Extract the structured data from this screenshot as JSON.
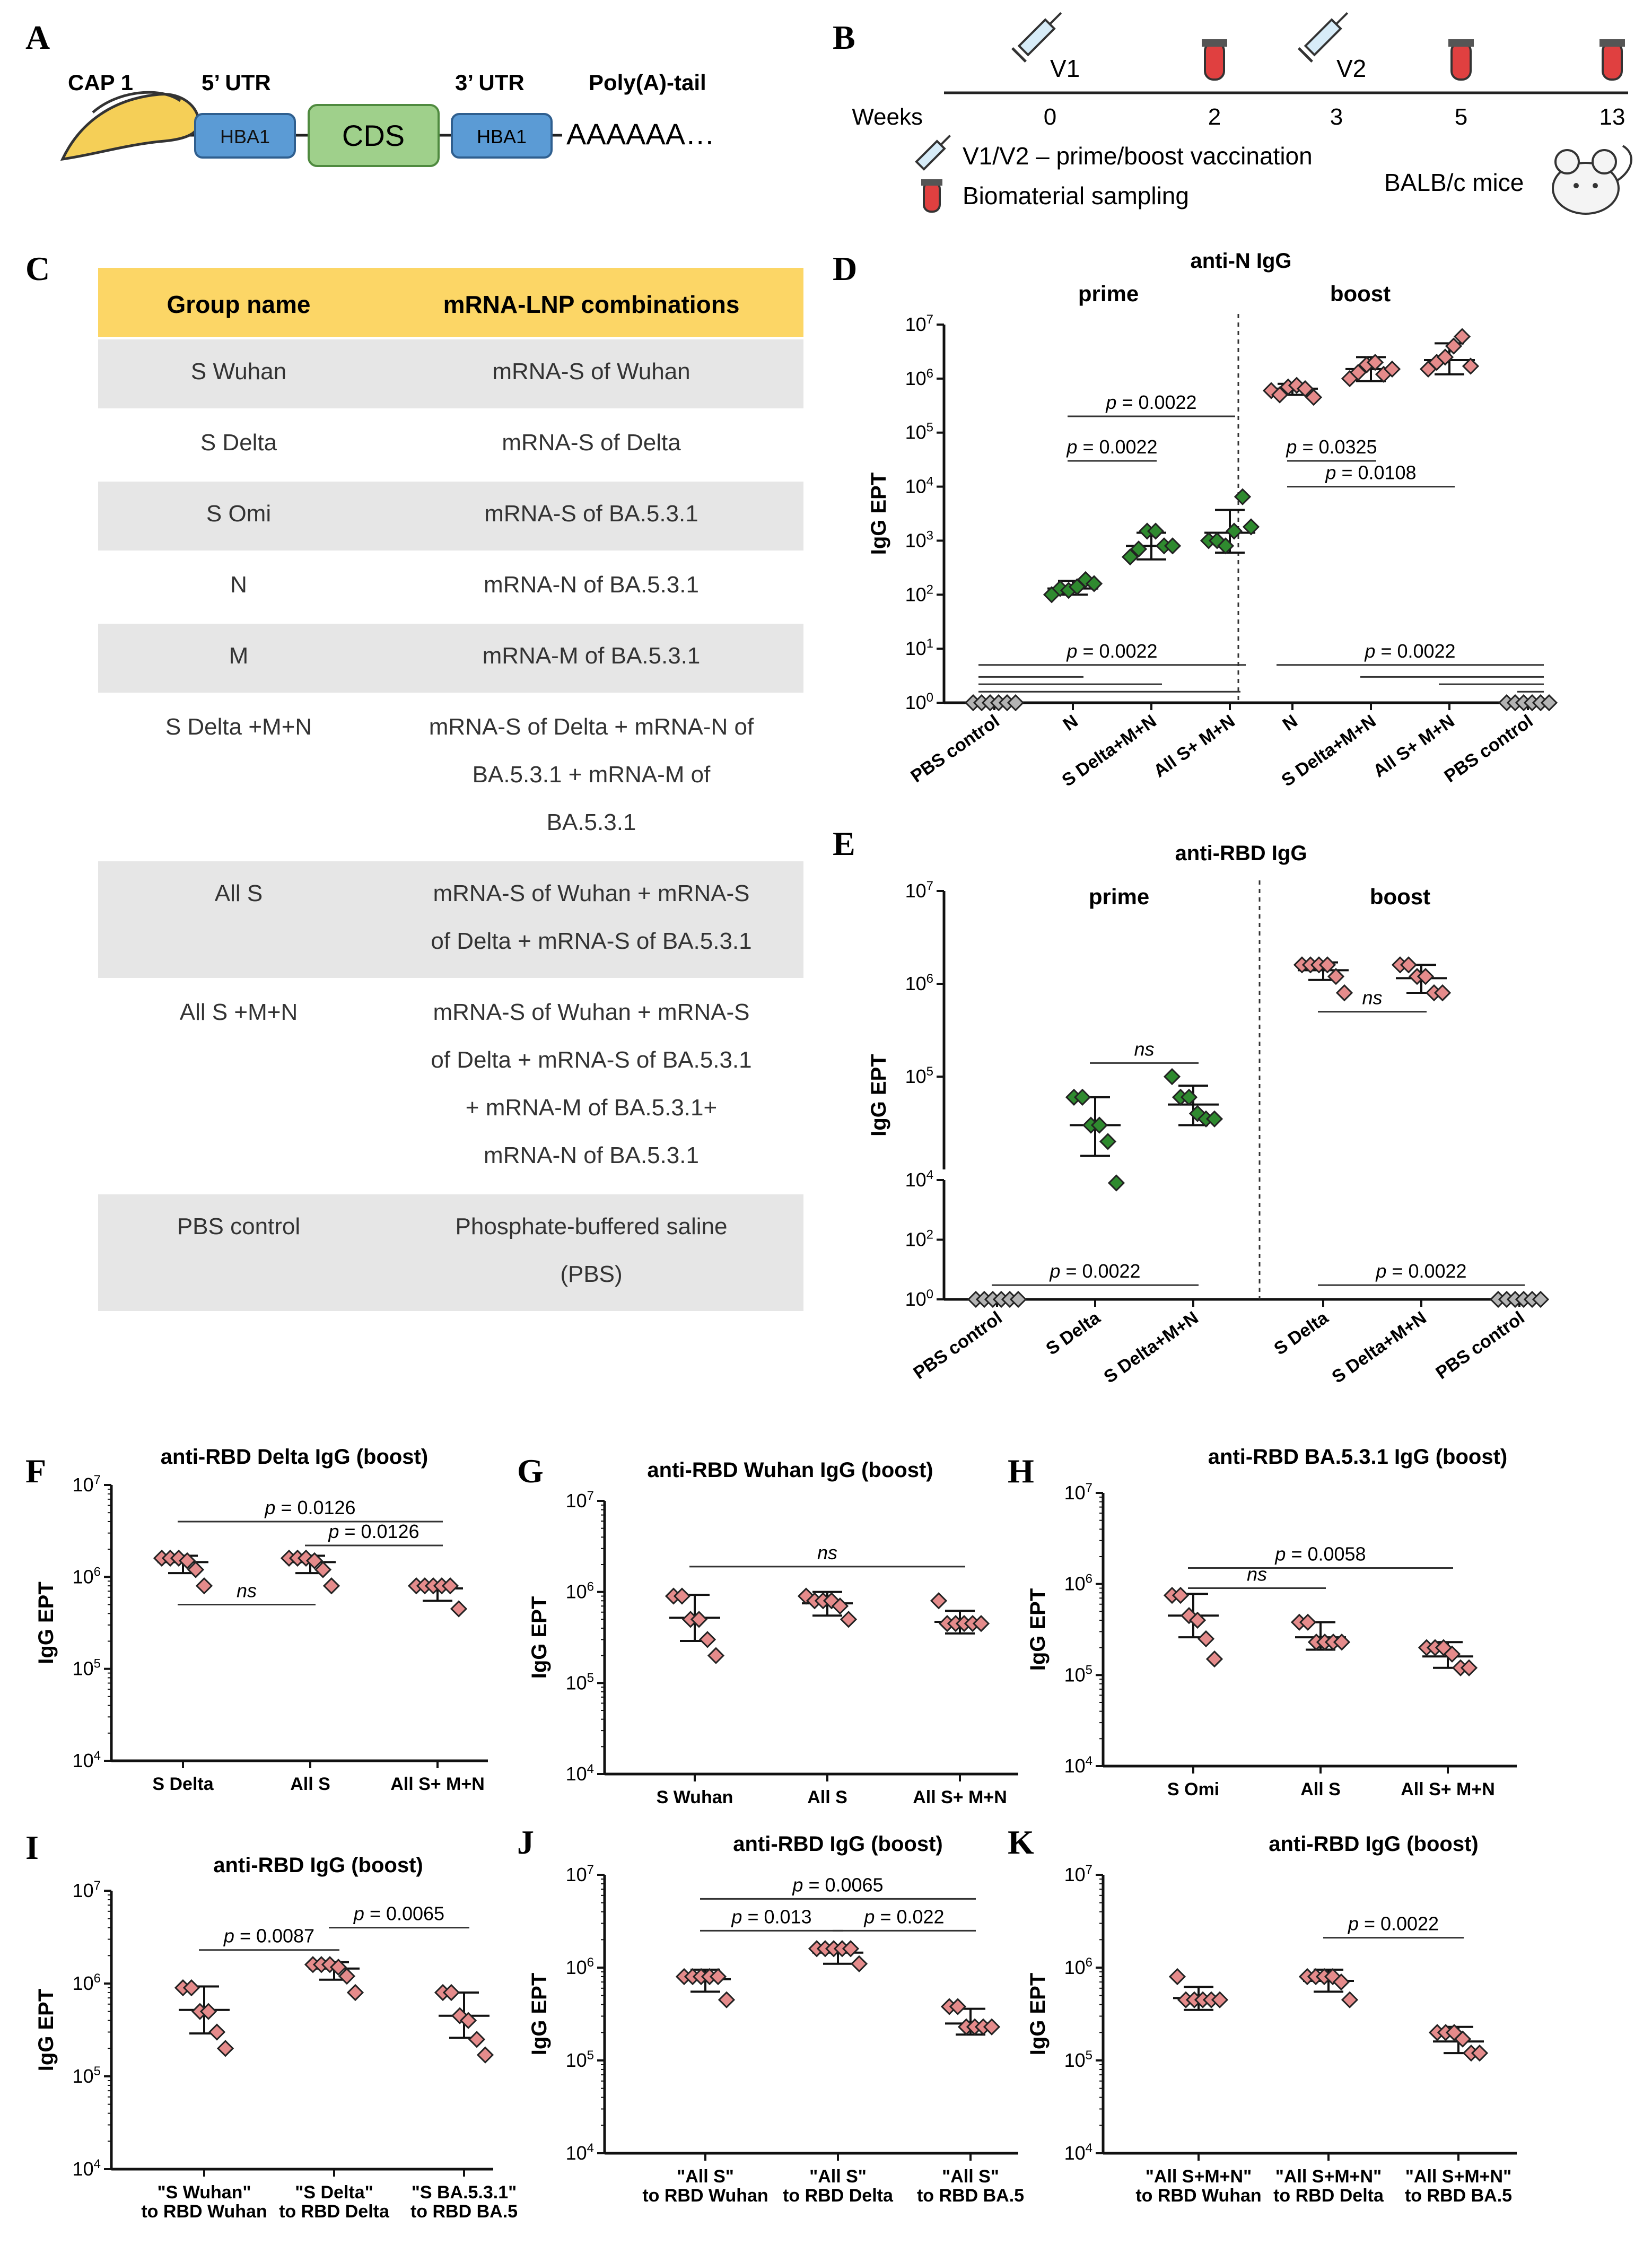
{
  "panel_letters": [
    "A",
    "B",
    "C",
    "D",
    "E",
    "F",
    "G",
    "H",
    "I",
    "J",
    "K"
  ],
  "panel_a": {
    "cap": "CAP 1",
    "utr5": "5’ UTR",
    "utr3": "3’ UTR",
    "poly_a": "Poly(A)-tail",
    "hba1": "HBA1",
    "cds": "CDS",
    "tail_seq": "AAAAAA…"
  },
  "panel_b": {
    "weeks_label": "Weeks",
    "week_ticks": [
      "0",
      "2",
      "3",
      "5",
      "13"
    ],
    "v1": "V1",
    "v2": "V2",
    "legend_vacc": "V1/V2 – prime/boost vaccination",
    "legend_sampling": "Biomaterial sampling",
    "mice": "BALB/c mice"
  },
  "panel_c": {
    "header": [
      "Group name",
      "mRNA-LNP combinations"
    ],
    "rows": [
      {
        "name": "S Wuhan",
        "lines": [
          "mRNA-S of Wuhan"
        ]
      },
      {
        "name": "S Delta",
        "lines": [
          "mRNA-S of Delta"
        ]
      },
      {
        "name": "S Omi",
        "lines": [
          "mRNA-S of BA.5.3.1"
        ]
      },
      {
        "name": "N",
        "lines": [
          "mRNA-N of BA.5.3.1"
        ]
      },
      {
        "name": "M",
        "lines": [
          "mRNA-M of BA.5.3.1"
        ]
      },
      {
        "name": "S Delta +M+N",
        "lines": [
          "mRNA-S of Delta + mRNA-N of",
          "BA.5.3.1 + mRNA-M of",
          "BA.5.3.1"
        ]
      },
      {
        "name": "All S",
        "lines": [
          "mRNA-S of Wuhan + mRNA-S",
          "of Delta + mRNA-S of BA.5.3.1"
        ]
      },
      {
        "name": "All S +M+N",
        "lines": [
          "mRNA-S of Wuhan + mRNA-S",
          "of Delta + mRNA-S of BA.5.3.1",
          "+ mRNA-M of BA.5.3.1+",
          "mRNA-N of BA.5.3.1"
        ]
      },
      {
        "name": "PBS control",
        "lines": [
          "Phosphate-buffered saline",
          "(PBS)"
        ]
      }
    ],
    "colors": {
      "header": "#fcd666",
      "shade": "#e6e6e6"
    }
  },
  "colors": {
    "green": "#2f8a2f",
    "pink": "#e58b8b",
    "grey": "#b3b3b3",
    "yellow": "#f5cf57",
    "blue": "#5b9bd5",
    "cds": "#9fd08b"
  },
  "chart_data": [
    {
      "id": "D",
      "type": "scatter",
      "title": "anti-N IgG",
      "ylabel": "IgG EPT",
      "yscale": "log",
      "ylim": [
        1,
        10000000
      ],
      "yticks": [
        "10^0",
        "10^1",
        "10^2",
        "10^3",
        "10^4",
        "10^5",
        "10^6",
        "10^7"
      ],
      "sections": [
        "prime",
        "boost"
      ],
      "categories": [
        "PBS control",
        "N",
        "S Delta+M+N",
        "All S+ M+N",
        "N",
        "S Delta+M+N",
        "All S+ M+N",
        "PBS control"
      ],
      "series": [
        {
          "name": "PBS control (prime)",
          "color": "grey",
          "values": [
            1,
            1,
            1,
            1,
            1,
            1
          ],
          "mean": 1,
          "sd": [
            1,
            1
          ]
        },
        {
          "name": "N (prime)",
          "color": "green",
          "values": [
            100,
            130,
            120,
            140,
            190,
            160
          ],
          "mean": 130,
          "sd": [
            100,
            180
          ]
        },
        {
          "name": "S Delta+M+N (prime)",
          "color": "green",
          "values": [
            500,
            700,
            1500,
            1500,
            800,
            800
          ],
          "mean": 800,
          "sd": [
            450,
            1400
          ]
        },
        {
          "name": "All S+ M+N (prime)",
          "color": "green",
          "values": [
            1000,
            1000,
            800,
            1500,
            6500,
            1800
          ],
          "mean": 1400,
          "sd": [
            600,
            3700
          ]
        },
        {
          "name": "N (boost)",
          "color": "pink",
          "values": [
            600000,
            500000,
            700000,
            750000,
            650000,
            450000
          ],
          "mean": 650000,
          "sd": [
            500000,
            800000
          ]
        },
        {
          "name": "S Delta+M+N (boost)",
          "color": "pink",
          "values": [
            1000000,
            1300000,
            1800000,
            2000000,
            1200000,
            1500000
          ],
          "mean": 1500000,
          "sd": [
            900000,
            2500000
          ]
        },
        {
          "name": "All S+ M+N (boost)",
          "color": "pink",
          "values": [
            1500000,
            2000000,
            2500000,
            4000000,
            6000000,
            1700000
          ],
          "mean": 2200000,
          "sd": [
            1200000,
            4500000
          ]
        },
        {
          "name": "PBS control (boost)",
          "color": "grey",
          "values": [
            1,
            1,
            1,
            1,
            1,
            1
          ],
          "mean": 1,
          "sd": [
            1,
            1
          ]
        }
      ],
      "annotations": [
        {
          "text": "p = 0.0022",
          "from": 1,
          "to": 3,
          "y": 200000
        },
        {
          "text": "p = 0.0022",
          "from": 1,
          "to": 2,
          "y": 30000
        },
        {
          "text": "p = 0.0325",
          "from": 4,
          "to": 5,
          "y": 30000
        },
        {
          "text": "p = 0.0108",
          "from": 4,
          "to": 6,
          "y": 10000
        },
        {
          "text": "p = 0.0022",
          "from": 0,
          "to": 3,
          "y": 5,
          "lines": [
            3,
            2.2,
            1.6
          ]
        },
        {
          "text": "p = 0.0022",
          "from": 4,
          "to": 7,
          "y": 5,
          "lines": [
            3,
            2.2,
            1.6
          ]
        }
      ]
    },
    {
      "id": "E",
      "type": "scatter",
      "title": "anti-RBD IgG",
      "ylabel": "IgG EPT",
      "yscale": "log",
      "ylim": [
        1,
        10000000
      ],
      "yticks": [
        "10^0",
        "10^2",
        "10^4",
        "10^5",
        "10^6",
        "10^7"
      ],
      "sections": [
        "prime",
        "boost"
      ],
      "categories": [
        "PBS control",
        "S Delta",
        "S Delta+M+N",
        "S Delta",
        "S Delta+M+N",
        "PBS control"
      ],
      "series": [
        {
          "name": "PBS control (prime)",
          "color": "grey",
          "values": [
            1,
            1,
            1,
            1,
            1,
            1
          ],
          "mean": 1,
          "sd": [
            1,
            1
          ]
        },
        {
          "name": "S Delta (prime)",
          "color": "green",
          "values": [
            60000,
            60000,
            30000,
            30000,
            20000,
            8000
          ],
          "mean": 30000,
          "sd": [
            14000,
            60000
          ]
        },
        {
          "name": "S Delta+M+N (prime)",
          "color": "green",
          "values": [
            100000,
            60000,
            60000,
            40000,
            35000,
            35000
          ],
          "mean": 50000,
          "sd": [
            30000,
            80000
          ]
        },
        {
          "name": "S Delta (boost)",
          "color": "pink",
          "values": [
            1600000,
            1600000,
            1600000,
            1600000,
            1200000,
            800000
          ],
          "mean": 1400000,
          "sd": [
            1100000,
            1700000
          ]
        },
        {
          "name": "S Delta+M+N (boost)",
          "color": "pink",
          "values": [
            1600000,
            1600000,
            1200000,
            1200000,
            800000,
            800000
          ],
          "mean": 1150000,
          "sd": [
            800000,
            1600000
          ]
        },
        {
          "name": "PBS control (boost)",
          "color": "grey",
          "values": [
            1,
            1,
            1,
            1,
            1,
            1
          ],
          "mean": 1,
          "sd": [
            1,
            1
          ]
        }
      ],
      "annotations": [
        {
          "text": "ns",
          "from": 1,
          "to": 2,
          "y": 140000
        },
        {
          "text": "ns",
          "from": 3,
          "to": 4,
          "y": 500000
        },
        {
          "text": "p = 0.0022",
          "from": 0,
          "to": 2,
          "y": 3
        },
        {
          "text": "p = 0.0022",
          "from": 3,
          "to": 5,
          "y": 3
        }
      ]
    },
    {
      "id": "F",
      "type": "scatter",
      "title": "anti-RBD Delta IgG (boost)",
      "ylabel": "IgG EPT",
      "yscale": "log",
      "ylim": [
        10000,
        10000000
      ],
      "yticks": [
        "10^4",
        "10^5",
        "10^6",
        "10^7"
      ],
      "categories": [
        "S Delta",
        "All S",
        "All S+ M+N"
      ],
      "series": [
        {
          "name": "S Delta",
          "color": "pink",
          "values": [
            1600000,
            1600000,
            1600000,
            1500000,
            1200000,
            800000
          ],
          "mean": 1450000,
          "sd": [
            1100000,
            1700000
          ]
        },
        {
          "name": "All S",
          "color": "pink",
          "values": [
            1600000,
            1600000,
            1600000,
            1500000,
            1200000,
            800000
          ],
          "mean": 1450000,
          "sd": [
            1100000,
            1700000
          ]
        },
        {
          "name": "All S+ M+N",
          "color": "pink",
          "values": [
            800000,
            800000,
            800000,
            800000,
            800000,
            450000
          ],
          "mean": 750000,
          "sd": [
            550000,
            850000
          ]
        }
      ],
      "annotations": [
        {
          "text": "p = 0.0126",
          "from": 0,
          "to": 2,
          "y": 4000000
        },
        {
          "text": "p = 0.0126",
          "from": 1,
          "to": 2,
          "y": 2200000
        },
        {
          "text": "ns",
          "from": 0,
          "to": 1,
          "y": 500000,
          "below": true
        }
      ]
    },
    {
      "id": "G",
      "type": "scatter",
      "title": "anti-RBD Wuhan IgG (boost)",
      "ylabel": "IgG EPT",
      "yscale": "log",
      "ylim": [
        10000,
        10000000
      ],
      "yticks": [
        "10^4",
        "10^5",
        "10^6",
        "10^7"
      ],
      "categories": [
        "S Wuhan",
        "All S",
        "All S+ M+N"
      ],
      "series": [
        {
          "name": "S Wuhan",
          "color": "pink",
          "values": [
            900000,
            900000,
            500000,
            500000,
            300000,
            200000
          ],
          "mean": 520000,
          "sd": [
            290000,
            930000
          ]
        },
        {
          "name": "All S",
          "color": "pink",
          "values": [
            900000,
            800000,
            800000,
            800000,
            700000,
            500000
          ],
          "mean": 750000,
          "sd": [
            550000,
            1000000
          ]
        },
        {
          "name": "All S+ M+N",
          "color": "pink",
          "values": [
            800000,
            450000,
            450000,
            450000,
            450000,
            450000
          ],
          "mean": 470000,
          "sd": [
            350000,
            620000
          ]
        }
      ],
      "annotations": [
        {
          "text": "ns",
          "from": 0,
          "to": 2,
          "y": 1900000
        }
      ]
    },
    {
      "id": "H",
      "type": "scatter",
      "title": "anti-RBD BA.5.3.1 IgG (boost)",
      "ylabel": "IgG EPT",
      "yscale": "log",
      "ylim": [
        10000,
        10000000
      ],
      "yticks": [
        "10^4",
        "10^5",
        "10^6",
        "10^7"
      ],
      "categories": [
        "S Omi",
        "All S",
        "All S+ M+N"
      ],
      "series": [
        {
          "name": "S Omi",
          "color": "pink",
          "values": [
            750000,
            750000,
            450000,
            400000,
            250000,
            150000
          ],
          "mean": 450000,
          "sd": [
            260000,
            780000
          ]
        },
        {
          "name": "All S",
          "color": "pink",
          "values": [
            380000,
            380000,
            230000,
            230000,
            230000,
            230000
          ],
          "mean": 260000,
          "sd": [
            190000,
            380000
          ]
        },
        {
          "name": "All S+ M+N",
          "color": "pink",
          "values": [
            200000,
            200000,
            200000,
            170000,
            120000,
            120000
          ],
          "mean": 160000,
          "sd": [
            120000,
            230000
          ]
        }
      ],
      "annotations": [
        {
          "text": "p = 0.0058",
          "from": 0,
          "to": 2,
          "y": 1500000
        },
        {
          "text": "ns",
          "from": 0,
          "to": 1,
          "y": 900000
        }
      ]
    },
    {
      "id": "I",
      "type": "scatter",
      "title": "anti-RBD IgG (boost)",
      "ylabel": "IgG EPT",
      "yscale": "log",
      "ylim": [
        10000,
        10000000
      ],
      "yticks": [
        "10^4",
        "10^5",
        "10^6",
        "10^7"
      ],
      "categories": [
        "\"S Wuhan\"|to RBD Wuhan",
        "\"S Delta\"|to RBD Delta",
        "\"S BA.5.3.1\"|to RBD BA.5"
      ],
      "series": [
        {
          "name": "S Wuhan to RBD Wuhan",
          "color": "pink",
          "values": [
            900000,
            900000,
            500000,
            500000,
            300000,
            200000
          ],
          "mean": 520000,
          "sd": [
            290000,
            930000
          ]
        },
        {
          "name": "S Delta to RBD Delta",
          "color": "pink",
          "values": [
            1600000,
            1600000,
            1600000,
            1500000,
            1200000,
            800000
          ],
          "mean": 1450000,
          "sd": [
            1100000,
            1700000
          ]
        },
        {
          "name": "S BA.5.3.1 to RBD BA.5",
          "color": "pink",
          "values": [
            800000,
            800000,
            450000,
            400000,
            250000,
            170000
          ],
          "mean": 450000,
          "sd": [
            260000,
            800000
          ]
        }
      ],
      "annotations": [
        {
          "text": "p = 0.0087",
          "from": 0,
          "to": 1,
          "y": 2300000
        },
        {
          "text": "p = 0.0065",
          "from": 1,
          "to": 2,
          "y": 4000000
        }
      ]
    },
    {
      "id": "J",
      "type": "scatter",
      "title": "anti-RBD IgG (boost)",
      "ylabel": "IgG EPT",
      "yscale": "log",
      "ylim": [
        10000,
        10000000
      ],
      "yticks": [
        "10^4",
        "10^5",
        "10^6",
        "10^7"
      ],
      "categories": [
        "\"All S\"|to RBD Wuhan",
        "\"All S\"|to RBD Delta",
        "\"All S\"|to RBD BA.5"
      ],
      "series": [
        {
          "name": "All S to RBD Wuhan",
          "color": "pink",
          "values": [
            800000,
            800000,
            800000,
            800000,
            800000,
            450000
          ],
          "mean": 750000,
          "sd": [
            550000,
            950000
          ]
        },
        {
          "name": "All S to RBD Delta",
          "color": "pink",
          "values": [
            1600000,
            1600000,
            1600000,
            1600000,
            1600000,
            1100000
          ],
          "mean": 1450000,
          "sd": [
            1100000,
            1700000
          ]
        },
        {
          "name": "All S to RBD BA.5",
          "color": "pink",
          "values": [
            380000,
            380000,
            230000,
            230000,
            230000,
            230000
          ],
          "mean": 250000,
          "sd": [
            190000,
            360000
          ]
        }
      ],
      "annotations": [
        {
          "text": "p = 0.0065",
          "from": 0,
          "to": 2,
          "y": 5500000
        },
        {
          "text": "p = 0.013",
          "from": 0,
          "to": 1,
          "y": 2500000
        },
        {
          "text": "p = 0.022",
          "from": 1,
          "to": 2,
          "y": 2500000
        }
      ]
    },
    {
      "id": "K",
      "type": "scatter",
      "title": "anti-RBD IgG (boost)",
      "ylabel": "IgG EPT",
      "yscale": "log",
      "ylim": [
        10000,
        10000000
      ],
      "yticks": [
        "10^4",
        "10^5",
        "10^6",
        "10^7"
      ],
      "categories": [
        "\"All S+M+N\"|to RBD Wuhan",
        "\"All S+M+N\"|to RBD Delta",
        "\"All S+M+N\"|to RBD BA.5"
      ],
      "series": [
        {
          "name": "All S+M+N to RBD Wuhan",
          "color": "pink",
          "values": [
            800000,
            450000,
            450000,
            450000,
            450000,
            450000
          ],
          "mean": 470000,
          "sd": [
            350000,
            620000
          ]
        },
        {
          "name": "All S+M+N to RBD Delta",
          "color": "pink",
          "values": [
            800000,
            800000,
            800000,
            800000,
            700000,
            450000
          ],
          "mean": 720000,
          "sd": [
            550000,
            950000
          ]
        },
        {
          "name": "All S+M+N to RBD BA.5",
          "color": "pink",
          "values": [
            200000,
            200000,
            200000,
            170000,
            120000,
            120000
          ],
          "mean": 160000,
          "sd": [
            120000,
            230000
          ]
        }
      ],
      "annotations": [
        {
          "text": "p = 0.0022",
          "from": 1,
          "to": 2,
          "y": 2100000
        }
      ]
    }
  ]
}
